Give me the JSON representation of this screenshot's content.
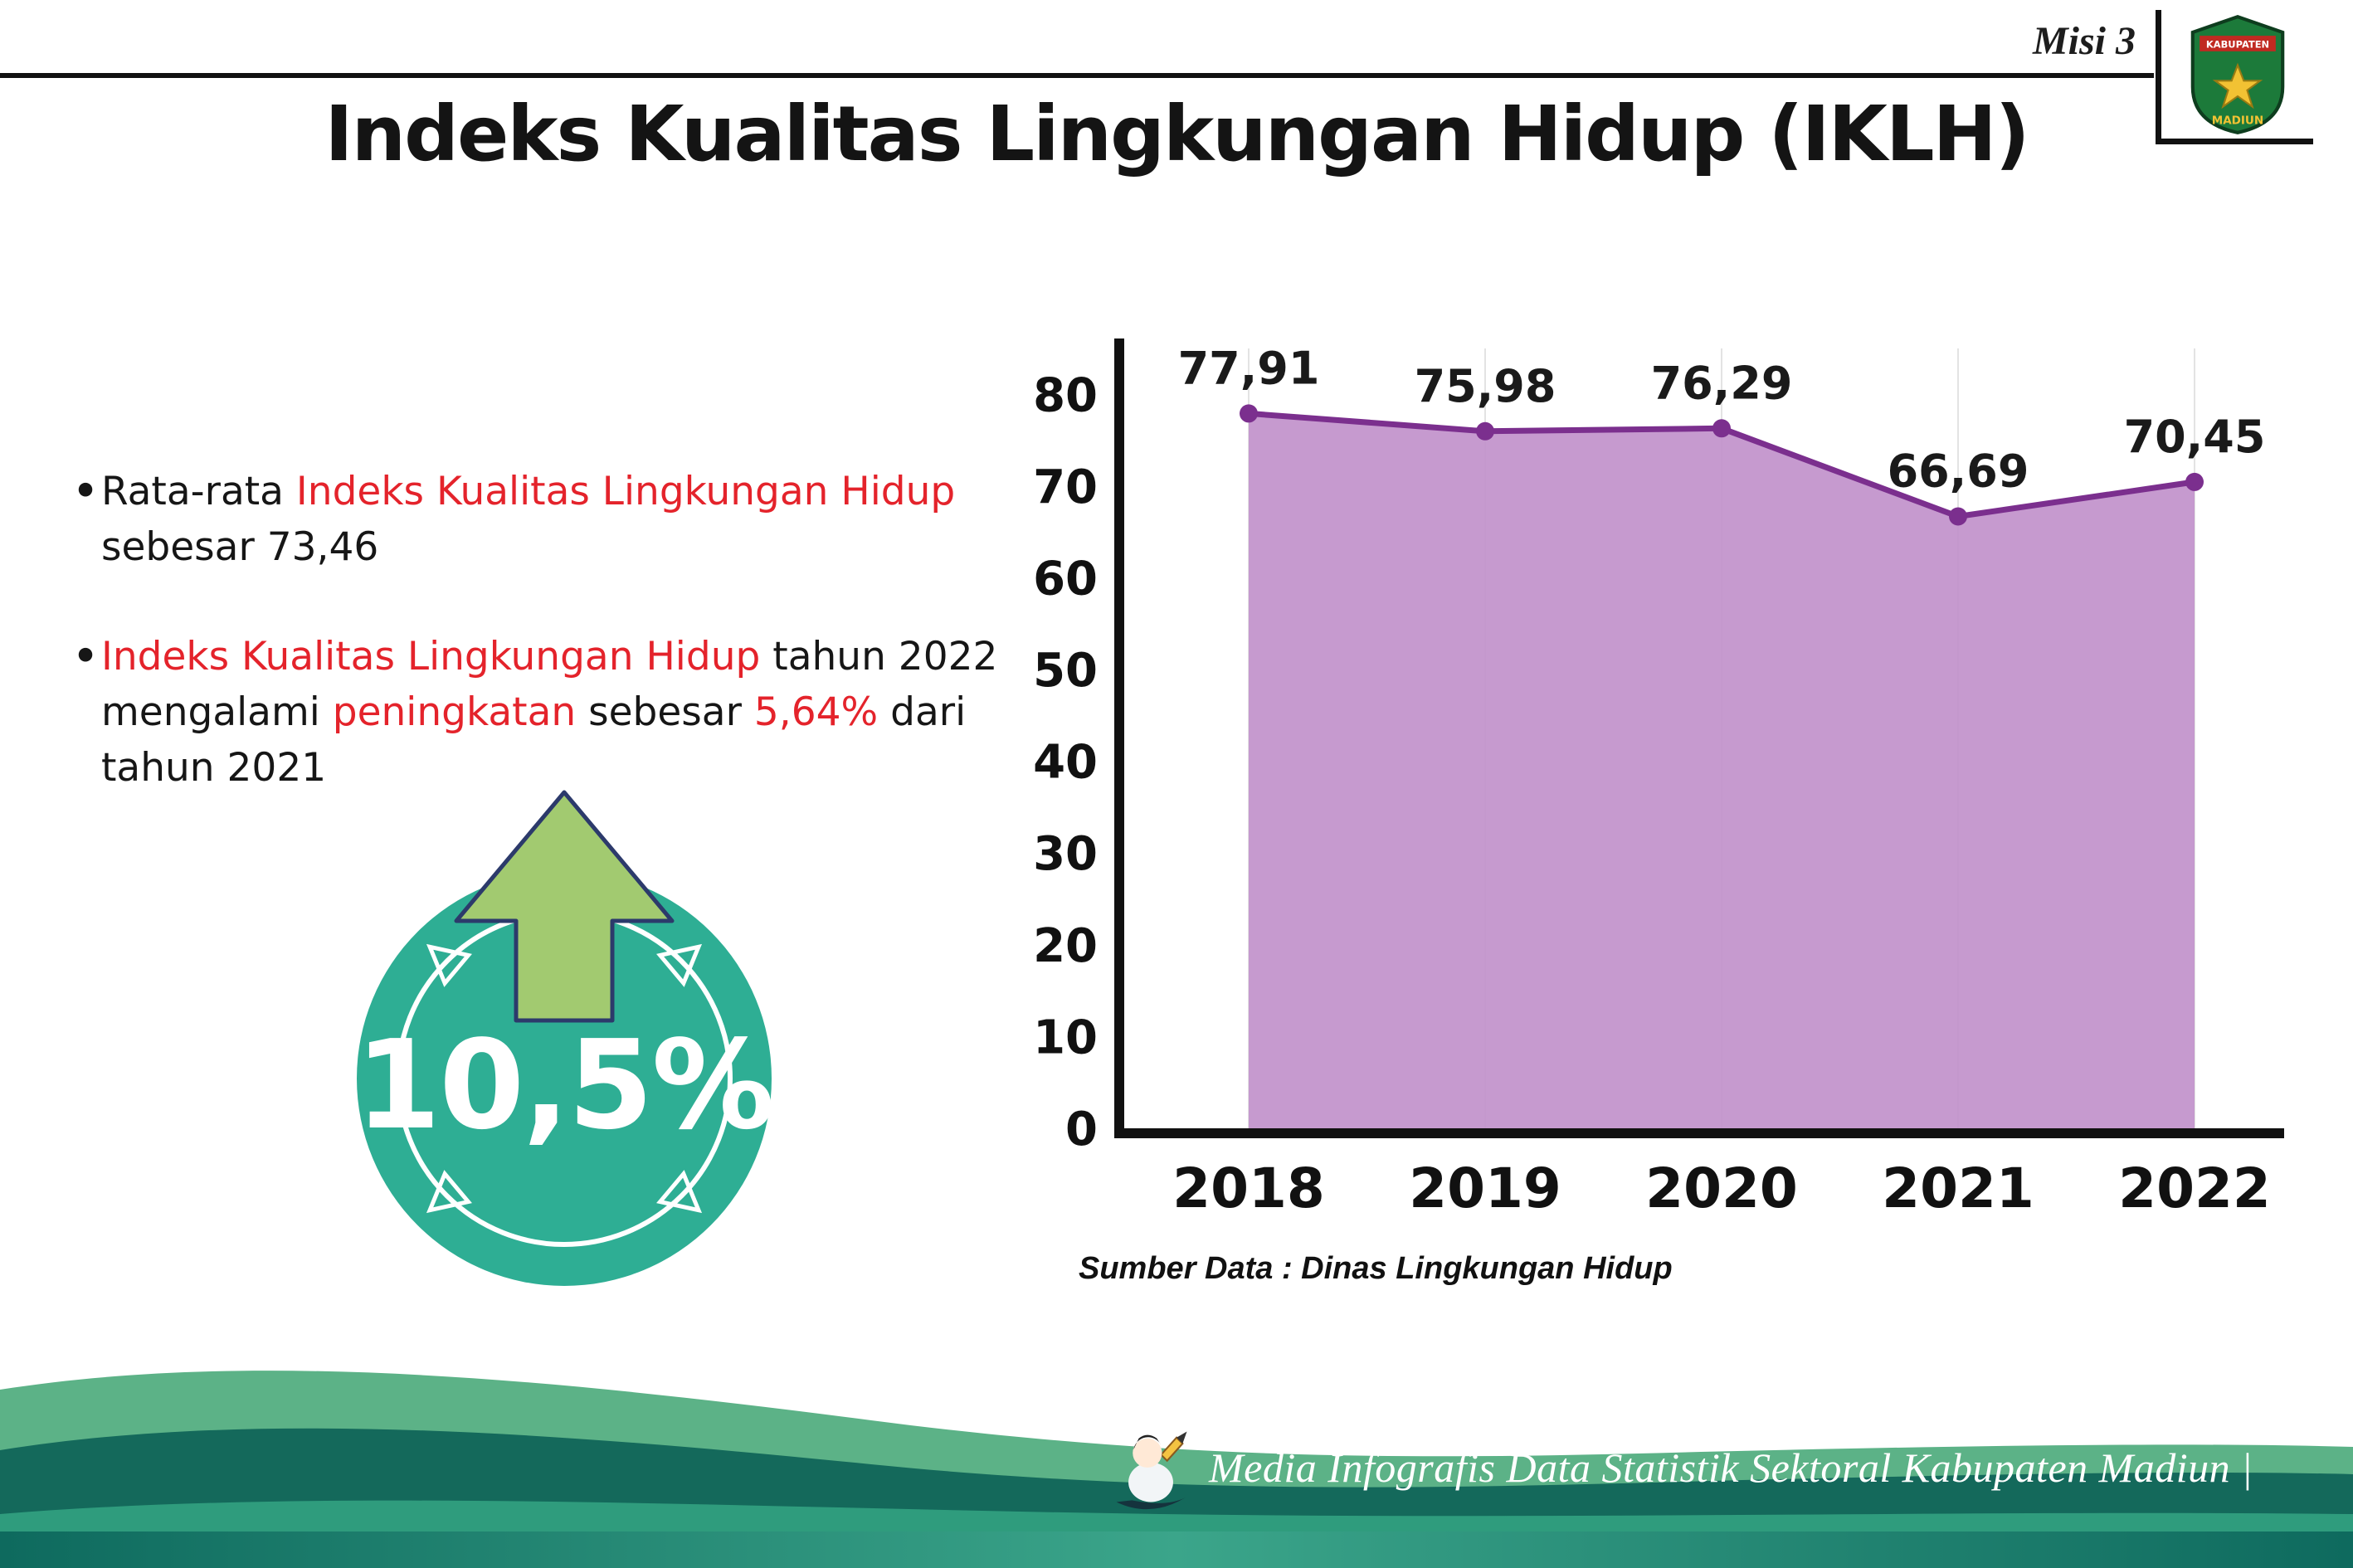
{
  "header": {
    "misi": "Misi 3",
    "title": "Indeks Kualitas Lingkungan Hidup (IKLH)",
    "logo": {
      "top": "KABUPATEN",
      "bottom": "MADIUN"
    }
  },
  "bullets": [
    {
      "segments": [
        {
          "text": "Rata-rata ",
          "color": "black"
        },
        {
          "text": "Indeks Kualitas Lingkungan Hidup",
          "color": "red"
        },
        {
          "text": " sebesar 73,46",
          "color": "black"
        }
      ]
    },
    {
      "segments": [
        {
          "text": "Indeks Kualitas Lingkungan Hidup",
          "color": "red"
        },
        {
          "text": " tahun 2022 mengalami ",
          "color": "black"
        },
        {
          "text": "peningkatan",
          "color": "red"
        },
        {
          "text": " sebesar ",
          "color": "black"
        },
        {
          "text": "5,64%",
          "color": "red"
        },
        {
          "text": " dari tahun 2021",
          "color": "black"
        }
      ]
    }
  ],
  "badge": {
    "value": "10,5%",
    "icon": "arrow-up-icon"
  },
  "chart_data": {
    "type": "area",
    "categories": [
      "2018",
      "2019",
      "2020",
      "2021",
      "2022"
    ],
    "values": [
      77.91,
      75.98,
      76.29,
      66.69,
      70.45
    ],
    "value_labels": [
      "77,91",
      "75,98",
      "76,29",
      "66,69",
      "70,45"
    ],
    "title": "",
    "xlabel": "",
    "ylabel": "",
    "ylim": [
      0,
      85
    ],
    "yticks": [
      0,
      10,
      20,
      30,
      40,
      50,
      60,
      70,
      80
    ],
    "grid": "vertical-light",
    "legend": "none",
    "fill_color": "#c08fca",
    "line_color": "#7b2f8e",
    "source": "Sumber Data : Dinas Lingkungan Hidup"
  },
  "footer": {
    "caption": "Media Infografis Data Statistik Sektoral Kabupaten Madiun |"
  },
  "colors": {
    "red": "#e4232b",
    "teal": "#2eae94",
    "arrow_green": "#a2ca70",
    "arrow_outline": "#2c3a6b",
    "footer_light": "#5cb287",
    "footer_dark": "#14695b",
    "footer_mid": "#2f9c7d",
    "strip_dark": "#0e6a5e",
    "strip_light": "#3ba58a",
    "ink": "#161616"
  }
}
